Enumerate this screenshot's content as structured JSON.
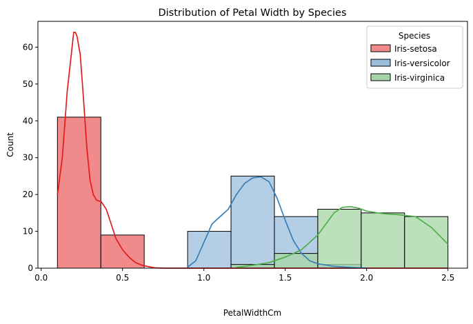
{
  "chart_data": {
    "type": "histogram",
    "title": "Distribution of Petal Width by Species",
    "xlabel": "PetalWidthCm",
    "ylabel": "Count",
    "xlim": [
      -0.02,
      2.62
    ],
    "ylim": [
      0,
      67
    ],
    "xticks": [
      0.0,
      0.5,
      1.0,
      1.5,
      2.0,
      2.5
    ],
    "xtick_labels": [
      "0.0",
      "0.5",
      "1.0",
      "1.5",
      "2.0",
      "2.5"
    ],
    "yticks": [
      0,
      10,
      20,
      30,
      40,
      50,
      60
    ],
    "ytick_labels": [
      "0",
      "10",
      "20",
      "30",
      "40",
      "50",
      "60"
    ],
    "bin_edges": [
      0.1,
      0.3667,
      0.6333,
      0.9,
      1.1667,
      1.4333,
      1.7,
      1.9667,
      2.2333,
      2.5
    ],
    "legend_title": "Species",
    "legend_position": "upper right",
    "series": [
      {
        "name": "Iris-setosa",
        "color": "#e41a1c",
        "fill": "#f08a8b",
        "counts": [
          41,
          9,
          0,
          0,
          0,
          0,
          0,
          0,
          0
        ],
        "kde": [
          [
            0.1,
            20
          ],
          [
            0.13,
            30
          ],
          [
            0.16,
            48
          ],
          [
            0.19,
            60
          ],
          [
            0.2,
            64
          ],
          [
            0.21,
            64
          ],
          [
            0.22,
            63
          ],
          [
            0.24,
            58
          ],
          [
            0.26,
            46
          ],
          [
            0.28,
            33
          ],
          [
            0.3,
            24
          ],
          [
            0.32,
            20
          ],
          [
            0.34,
            18.5
          ],
          [
            0.37,
            18
          ],
          [
            0.4,
            16
          ],
          [
            0.43,
            12
          ],
          [
            0.46,
            8
          ],
          [
            0.5,
            5
          ],
          [
            0.54,
            3
          ],
          [
            0.58,
            1.5
          ],
          [
            0.62,
            0.8
          ],
          [
            0.66,
            0.4
          ],
          [
            0.7,
            0.1
          ],
          [
            0.75,
            0
          ],
          [
            2.5,
            0
          ]
        ]
      },
      {
        "name": "Iris-versicolor",
        "color": "#377eb8",
        "fill": "#9bbedc",
        "counts": [
          0,
          0,
          0,
          10,
          25,
          14,
          1,
          0,
          0
        ],
        "kde": [
          [
            0.9,
            0.3
          ],
          [
            0.95,
            2
          ],
          [
            1.0,
            7
          ],
          [
            1.05,
            12
          ],
          [
            1.1,
            14
          ],
          [
            1.15,
            16
          ],
          [
            1.2,
            20
          ],
          [
            1.25,
            23
          ],
          [
            1.3,
            24.5
          ],
          [
            1.35,
            24.8
          ],
          [
            1.4,
            23.5
          ],
          [
            1.45,
            19
          ],
          [
            1.5,
            13
          ],
          [
            1.55,
            7.5
          ],
          [
            1.6,
            4
          ],
          [
            1.65,
            2
          ],
          [
            1.7,
            1.2
          ],
          [
            1.8,
            0.5
          ],
          [
            1.9,
            0.2
          ],
          [
            2.0,
            0
          ]
        ]
      },
      {
        "name": "Iris-virginica",
        "color": "#4daf4a",
        "fill": "#a6d5a5",
        "counts": [
          0,
          0,
          0,
          0,
          1,
          4,
          16,
          15,
          14
        ],
        "kde": [
          [
            1.2,
            0.2
          ],
          [
            1.3,
            0.8
          ],
          [
            1.4,
            1.5
          ],
          [
            1.5,
            3
          ],
          [
            1.6,
            5
          ],
          [
            1.7,
            9
          ],
          [
            1.75,
            12
          ],
          [
            1.8,
            15
          ],
          [
            1.85,
            16.5
          ],
          [
            1.9,
            16.7
          ],
          [
            1.95,
            16.3
          ],
          [
            2.0,
            15.5
          ],
          [
            2.1,
            14.8
          ],
          [
            2.2,
            14.5
          ],
          [
            2.3,
            14
          ],
          [
            2.4,
            11
          ],
          [
            2.5,
            6.5
          ]
        ]
      }
    ]
  }
}
